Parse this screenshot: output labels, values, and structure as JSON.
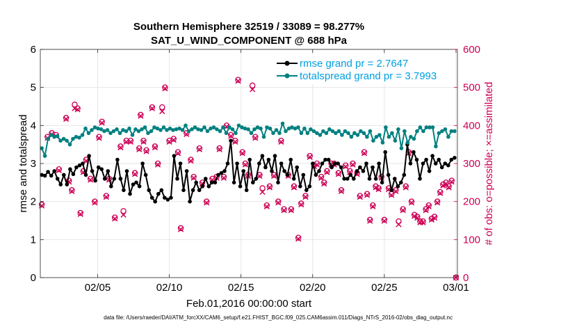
{
  "chart_data": {
    "type": "line",
    "title": "Southern Hemisphere 32519 / 33089 = 98.277%",
    "subtitle": "SAT_U_WIND_COMPONENT @ 688 hPa",
    "xlabel": "Feb.01,2016 00:00:00 start",
    "ylabel": "rmse and totalspread",
    "y2label": "# of obs: o=possible; ×=assimilated",
    "xlim": [
      1,
      30.1
    ],
    "ylim": [
      0,
      6
    ],
    "y2lim": [
      0,
      600
    ],
    "x_ticks": [
      {
        "x": 5,
        "label": "02/05"
      },
      {
        "x": 10,
        "label": "02/10"
      },
      {
        "x": 15,
        "label": "02/15"
      },
      {
        "x": 20,
        "label": "02/20"
      },
      {
        "x": 25,
        "label": "02/25"
      },
      {
        "x": 30,
        "label": "03/01"
      }
    ],
    "y_ticks": [
      0,
      1,
      2,
      3,
      4,
      5,
      6
    ],
    "y2_ticks": [
      0,
      100,
      200,
      300,
      400,
      500,
      600
    ],
    "series": [
      {
        "name": "rmse grand pr = 2.7647",
        "color": "#000000",
        "axis": "left",
        "marker": "circle",
        "values": [
          2.7,
          2.68,
          2.78,
          2.68,
          2.8,
          2.6,
          2.45,
          2.7,
          2.45,
          2.85,
          2.72,
          2.9,
          2.95,
          3.0,
          2.7,
          3.2,
          2.8,
          2.55,
          2.9,
          2.85,
          2.6,
          2.8,
          2.4,
          2.6,
          3.1,
          2.6,
          2.3,
          2.8,
          2.2,
          2.45,
          2.5,
          2.4,
          3.0,
          2.7,
          2.3,
          2.1,
          2.0,
          2.2,
          2.3,
          2.1,
          2.05,
          2.1,
          3.2,
          2.6,
          3.0,
          2.3,
          2.8,
          2.0,
          2.3,
          2.5,
          2.3,
          2.4,
          2.6,
          2.4,
          2.5,
          2.5,
          2.7,
          2.75,
          2.8,
          3.0,
          3.6,
          2.5,
          3.0,
          2.4,
          2.8,
          2.3,
          3.1,
          2.5,
          2.6,
          3.0,
          3.2,
          2.9,
          3.1,
          2.8,
          3.2,
          2.5,
          3.0,
          2.8,
          2.7,
          3.1,
          2.6,
          2.9,
          2.4,
          2.7,
          2.3,
          2.4,
          3.0,
          2.7,
          2.8,
          3.0,
          3.1,
          3.1,
          2.9,
          3.0,
          3.0,
          2.9,
          2.6,
          2.6,
          2.7,
          2.6,
          2.8,
          2.9,
          2.8,
          3.0,
          2.6,
          2.9,
          2.6,
          3.0,
          2.5,
          3.3,
          2.7,
          2.3,
          2.6,
          2.4,
          2.5,
          2.7,
          3.5,
          3.0,
          3.3,
          3.1,
          2.6,
          3.0,
          3.1,
          2.8,
          3.2,
          3.0,
          3.1,
          2.9,
          3.0,
          2.95,
          3.1,
          3.15
        ]
      },
      {
        "name": "totalspread grand pr = 3.7993",
        "color": "#008080",
        "axis": "left",
        "marker": "circle",
        "values": [
          3.4,
          3.2,
          3.65,
          3.75,
          3.7,
          3.72,
          3.6,
          3.65,
          3.6,
          3.5,
          3.65,
          3.7,
          3.68,
          3.75,
          3.92,
          3.8,
          3.88,
          3.95,
          3.92,
          3.9,
          3.85,
          3.88,
          3.8,
          3.85,
          3.9,
          3.8,
          3.88,
          3.85,
          3.92,
          3.75,
          3.9,
          3.85,
          3.9,
          3.95,
          3.8,
          3.85,
          3.95,
          3.92,
          3.88,
          3.95,
          3.88,
          3.92,
          3.88,
          3.9,
          3.92,
          3.88,
          4.0,
          3.85,
          3.9,
          3.95,
          3.9,
          3.88,
          3.95,
          3.85,
          3.92,
          3.95,
          3.9,
          3.85,
          3.95,
          3.8,
          3.95,
          3.9,
          3.8,
          4.0,
          3.95,
          3.92,
          3.9,
          3.8,
          3.9,
          3.95,
          3.92,
          3.7,
          3.95,
          3.92,
          3.8,
          3.88,
          3.8,
          4.05,
          3.85,
          3.92,
          3.95,
          3.92,
          3.95,
          3.8,
          3.92,
          3.8,
          3.9,
          3.85,
          3.8,
          3.75,
          3.85,
          3.8,
          3.9,
          3.85,
          3.8,
          3.85,
          3.75,
          3.85,
          3.8,
          3.7,
          3.8,
          3.75,
          3.85,
          3.8,
          3.7,
          3.85,
          3.6,
          3.7,
          3.75,
          3.55,
          3.95,
          3.7,
          3.8,
          3.6,
          3.9,
          3.4,
          3.85,
          3.55,
          3.7,
          3.65,
          3.85,
          3.95,
          3.85,
          3.95,
          3.95,
          3.95,
          3.45,
          3.8,
          3.85,
          3.9,
          3.7,
          3.85,
          3.85
        ]
      }
    ],
    "obs_possible": [
      {
        "x": 1.1,
        "y": 192
      },
      {
        "x": 1.5,
        "y": 370
      },
      {
        "x": 1.8,
        "y": 380
      },
      {
        "x": 2.1,
        "y": 375
      },
      {
        "x": 2.3,
        "y": 285
      },
      {
        "x": 2.8,
        "y": 420
      },
      {
        "x": 3.0,
        "y": 255
      },
      {
        "x": 3.2,
        "y": 230
      },
      {
        "x": 3.4,
        "y": 455
      },
      {
        "x": 3.6,
        "y": 445
      },
      {
        "x": 3.8,
        "y": 170
      },
      {
        "x": 4.0,
        "y": 280
      },
      {
        "x": 4.2,
        "y": 310
      },
      {
        "x": 4.5,
        "y": 260
      },
      {
        "x": 4.8,
        "y": 200
      },
      {
        "x": 5.1,
        "y": 370
      },
      {
        "x": 5.3,
        "y": 410
      },
      {
        "x": 5.6,
        "y": 215
      },
      {
        "x": 5.8,
        "y": 260
      },
      {
        "x": 6.2,
        "y": 158
      },
      {
        "x": 6.6,
        "y": 345
      },
      {
        "x": 6.8,
        "y": 175
      },
      {
        "x": 7.0,
        "y": 360
      },
      {
        "x": 7.3,
        "y": 360
      },
      {
        "x": 7.6,
        "y": 275
      },
      {
        "x": 7.9,
        "y": 340
      },
      {
        "x": 8.0,
        "y": 428
      },
      {
        "x": 8.2,
        "y": 360
      },
      {
        "x": 8.4,
        "y": 335
      },
      {
        "x": 8.8,
        "y": 448
      },
      {
        "x": 9.0,
        "y": 345
      },
      {
        "x": 9.2,
        "y": 300
      },
      {
        "x": 9.5,
        "y": 448
      },
      {
        "x": 9.7,
        "y": 500
      },
      {
        "x": 10.0,
        "y": 360
      },
      {
        "x": 10.3,
        "y": 365
      },
      {
        "x": 10.6,
        "y": 330
      },
      {
        "x": 10.8,
        "y": 130
      },
      {
        "x": 11.2,
        "y": 380
      },
      {
        "x": 11.5,
        "y": 310
      },
      {
        "x": 11.7,
        "y": 265
      },
      {
        "x": 12.1,
        "y": 340
      },
      {
        "x": 12.3,
        "y": 250
      },
      {
        "x": 12.6,
        "y": 200
      },
      {
        "x": 13.0,
        "y": 260
      },
      {
        "x": 13.3,
        "y": 265
      },
      {
        "x": 13.5,
        "y": 340
      },
      {
        "x": 13.8,
        "y": 265
      },
      {
        "x": 14.0,
        "y": 400
      },
      {
        "x": 14.3,
        "y": 375
      },
      {
        "x": 14.6,
        "y": 360
      },
      {
        "x": 14.8,
        "y": 520
      },
      {
        "x": 15.1,
        "y": 330
      },
      {
        "x": 15.3,
        "y": 300
      },
      {
        "x": 15.5,
        "y": 270
      },
      {
        "x": 15.8,
        "y": 505
      },
      {
        "x": 16.0,
        "y": 370
      },
      {
        "x": 16.3,
        "y": 270
      },
      {
        "x": 16.5,
        "y": 235
      },
      {
        "x": 16.8,
        "y": 190
      },
      {
        "x": 17.0,
        "y": 240
      },
      {
        "x": 17.3,
        "y": 270
      },
      {
        "x": 17.6,
        "y": 200
      },
      {
        "x": 17.8,
        "y": 360
      },
      {
        "x": 18.0,
        "y": 180
      },
      {
        "x": 18.3,
        "y": 270
      },
      {
        "x": 18.5,
        "y": 180
      },
      {
        "x": 18.7,
        "y": 240
      },
      {
        "x": 19.0,
        "y": 105
      },
      {
        "x": 19.2,
        "y": 195
      },
      {
        "x": 19.5,
        "y": 215
      },
      {
        "x": 19.8,
        "y": 320
      },
      {
        "x": 20.1,
        "y": 295
      },
      {
        "x": 20.3,
        "y": 300
      },
      {
        "x": 20.6,
        "y": 265
      },
      {
        "x": 20.8,
        "y": 250
      },
      {
        "x": 21.0,
        "y": 280
      },
      {
        "x": 21.3,
        "y": 300
      },
      {
        "x": 21.5,
        "y": 300
      },
      {
        "x": 21.8,
        "y": 275
      },
      {
        "x": 22.0,
        "y": 230
      },
      {
        "x": 22.3,
        "y": 295
      },
      {
        "x": 22.6,
        "y": 280
      },
      {
        "x": 22.8,
        "y": 300
      },
      {
        "x": 23.1,
        "y": 275
      },
      {
        "x": 23.3,
        "y": 215
      },
      {
        "x": 23.6,
        "y": 330
      },
      {
        "x": 23.8,
        "y": 220
      },
      {
        "x": 24.0,
        "y": 152
      },
      {
        "x": 24.2,
        "y": 190
      },
      {
        "x": 24.4,
        "y": 240
      },
      {
        "x": 24.6,
        "y": 235
      },
      {
        "x": 24.8,
        "y": 265
      },
      {
        "x": 25.0,
        "y": 152
      },
      {
        "x": 25.3,
        "y": 235
      },
      {
        "x": 25.5,
        "y": 220
      },
      {
        "x": 25.8,
        "y": 230
      },
      {
        "x": 26.0,
        "y": 148
      },
      {
        "x": 26.3,
        "y": 180
      },
      {
        "x": 26.5,
        "y": 240
      },
      {
        "x": 26.7,
        "y": 330
      },
      {
        "x": 26.9,
        "y": 200
      },
      {
        "x": 27.1,
        "y": 165
      },
      {
        "x": 27.3,
        "y": 160
      },
      {
        "x": 27.5,
        "y": 148
      },
      {
        "x": 27.7,
        "y": 148
      },
      {
        "x": 27.9,
        "y": 180
      },
      {
        "x": 28.1,
        "y": 190
      },
      {
        "x": 28.3,
        "y": 155
      },
      {
        "x": 28.5,
        "y": 160
      },
      {
        "x": 28.7,
        "y": 200
      },
      {
        "x": 28.9,
        "y": 225
      },
      {
        "x": 29.1,
        "y": 245
      },
      {
        "x": 29.3,
        "y": 250
      },
      {
        "x": 29.5,
        "y": 240
      },
      {
        "x": 29.7,
        "y": 255
      },
      {
        "x": 30.0,
        "y": 0
      }
    ],
    "obs_assimilated": [
      {
        "x": 1.1,
        "y": 189
      },
      {
        "x": 1.5,
        "y": 367
      },
      {
        "x": 1.8,
        "y": 377
      },
      {
        "x": 2.1,
        "y": 372
      },
      {
        "x": 2.3,
        "y": 282
      },
      {
        "x": 2.8,
        "y": 417
      },
      {
        "x": 3.0,
        "y": 252
      },
      {
        "x": 3.2,
        "y": 227
      },
      {
        "x": 3.4,
        "y": 445
      },
      {
        "x": 3.6,
        "y": 442
      },
      {
        "x": 3.8,
        "y": 167
      },
      {
        "x": 4.0,
        "y": 277
      },
      {
        "x": 4.2,
        "y": 307
      },
      {
        "x": 4.5,
        "y": 257
      },
      {
        "x": 4.8,
        "y": 197
      },
      {
        "x": 5.1,
        "y": 367
      },
      {
        "x": 5.3,
        "y": 407
      },
      {
        "x": 5.6,
        "y": 212
      },
      {
        "x": 5.8,
        "y": 257
      },
      {
        "x": 6.2,
        "y": 155
      },
      {
        "x": 6.6,
        "y": 342
      },
      {
        "x": 6.8,
        "y": 165
      },
      {
        "x": 7.0,
        "y": 357
      },
      {
        "x": 7.3,
        "y": 357
      },
      {
        "x": 7.6,
        "y": 272
      },
      {
        "x": 7.9,
        "y": 337
      },
      {
        "x": 8.0,
        "y": 425
      },
      {
        "x": 8.2,
        "y": 357
      },
      {
        "x": 8.4,
        "y": 332
      },
      {
        "x": 8.8,
        "y": 445
      },
      {
        "x": 9.0,
        "y": 342
      },
      {
        "x": 9.2,
        "y": 297
      },
      {
        "x": 9.5,
        "y": 437
      },
      {
        "x": 9.7,
        "y": 497
      },
      {
        "x": 10.0,
        "y": 357
      },
      {
        "x": 10.3,
        "y": 362
      },
      {
        "x": 10.6,
        "y": 327
      },
      {
        "x": 10.8,
        "y": 127
      },
      {
        "x": 11.2,
        "y": 377
      },
      {
        "x": 11.5,
        "y": 307
      },
      {
        "x": 11.7,
        "y": 262
      },
      {
        "x": 12.1,
        "y": 337
      },
      {
        "x": 12.3,
        "y": 247
      },
      {
        "x": 12.6,
        "y": 197
      },
      {
        "x": 13.0,
        "y": 257
      },
      {
        "x": 13.3,
        "y": 262
      },
      {
        "x": 13.5,
        "y": 337
      },
      {
        "x": 13.8,
        "y": 262
      },
      {
        "x": 14.0,
        "y": 397
      },
      {
        "x": 14.3,
        "y": 372
      },
      {
        "x": 14.6,
        "y": 357
      },
      {
        "x": 14.8,
        "y": 517
      },
      {
        "x": 15.1,
        "y": 327
      },
      {
        "x": 15.3,
        "y": 297
      },
      {
        "x": 15.5,
        "y": 267
      },
      {
        "x": 15.8,
        "y": 495
      },
      {
        "x": 16.0,
        "y": 367
      },
      {
        "x": 16.3,
        "y": 267
      },
      {
        "x": 16.5,
        "y": 225
      },
      {
        "x": 16.8,
        "y": 187
      },
      {
        "x": 17.0,
        "y": 237
      },
      {
        "x": 17.3,
        "y": 267
      },
      {
        "x": 17.6,
        "y": 197
      },
      {
        "x": 17.8,
        "y": 357
      },
      {
        "x": 18.0,
        "y": 177
      },
      {
        "x": 18.3,
        "y": 267
      },
      {
        "x": 18.5,
        "y": 177
      },
      {
        "x": 18.7,
        "y": 237
      },
      {
        "x": 19.0,
        "y": 102
      },
      {
        "x": 19.2,
        "y": 192
      },
      {
        "x": 19.5,
        "y": 212
      },
      {
        "x": 19.8,
        "y": 317
      },
      {
        "x": 20.1,
        "y": 292
      },
      {
        "x": 20.3,
        "y": 297
      },
      {
        "x": 20.6,
        "y": 262
      },
      {
        "x": 20.8,
        "y": 247
      },
      {
        "x": 21.0,
        "y": 277
      },
      {
        "x": 21.3,
        "y": 297
      },
      {
        "x": 21.5,
        "y": 297
      },
      {
        "x": 21.8,
        "y": 272
      },
      {
        "x": 22.0,
        "y": 227
      },
      {
        "x": 22.3,
        "y": 292
      },
      {
        "x": 22.6,
        "y": 277
      },
      {
        "x": 22.8,
        "y": 297
      },
      {
        "x": 23.1,
        "y": 272
      },
      {
        "x": 23.3,
        "y": 212
      },
      {
        "x": 23.6,
        "y": 327
      },
      {
        "x": 23.8,
        "y": 217
      },
      {
        "x": 24.0,
        "y": 149
      },
      {
        "x": 24.2,
        "y": 187
      },
      {
        "x": 24.4,
        "y": 237
      },
      {
        "x": 24.6,
        "y": 232
      },
      {
        "x": 24.8,
        "y": 262
      },
      {
        "x": 25.0,
        "y": 149
      },
      {
        "x": 25.3,
        "y": 232
      },
      {
        "x": 25.5,
        "y": 217
      },
      {
        "x": 25.8,
        "y": 227
      },
      {
        "x": 26.0,
        "y": 140
      },
      {
        "x": 26.3,
        "y": 177
      },
      {
        "x": 26.5,
        "y": 237
      },
      {
        "x": 26.7,
        "y": 327
      },
      {
        "x": 26.9,
        "y": 197
      },
      {
        "x": 27.1,
        "y": 162
      },
      {
        "x": 27.3,
        "y": 157
      },
      {
        "x": 27.5,
        "y": 145
      },
      {
        "x": 27.7,
        "y": 145
      },
      {
        "x": 27.9,
        "y": 177
      },
      {
        "x": 28.1,
        "y": 187
      },
      {
        "x": 28.3,
        "y": 152
      },
      {
        "x": 28.5,
        "y": 157
      },
      {
        "x": 28.7,
        "y": 197
      },
      {
        "x": 28.9,
        "y": 222
      },
      {
        "x": 29.1,
        "y": 242
      },
      {
        "x": 29.3,
        "y": 247
      },
      {
        "x": 29.5,
        "y": 237
      },
      {
        "x": 29.7,
        "y": 252
      },
      {
        "x": 30.0,
        "y": 0
      }
    ],
    "obs_color": "#cc0055",
    "grid": true,
    "legend": "top-right"
  },
  "footer": "data file: /Users/raeder/DAI/ATM_forcXX/CAM6_setup/f.e21.FHIST_BGC.f09_025.CAM6assim.011/Diags_NTrS_2016-02/obs_diag_output.nc"
}
